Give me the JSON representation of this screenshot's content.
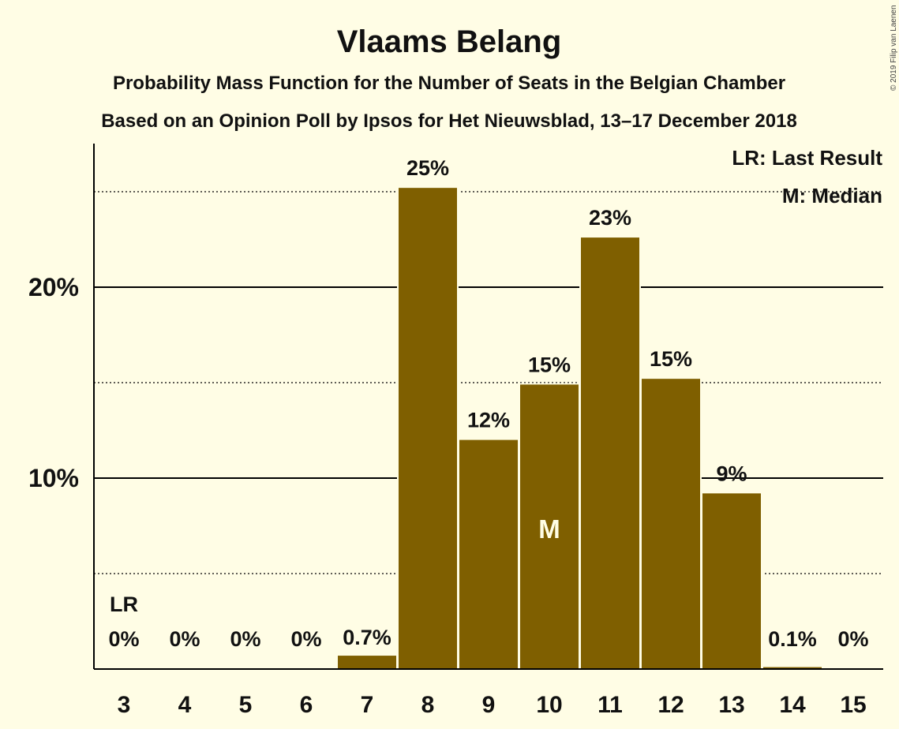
{
  "chart_data": {
    "type": "bar",
    "title": "Vlaams Belang",
    "subtitle": [
      "Probability Mass Function for the Number of Seats in the Belgian Chamber",
      "Based on an Opinion Poll by Ipsos for Het Nieuwsblad, 13–17 December 2018"
    ],
    "categories": [
      "3",
      "4",
      "5",
      "6",
      "7",
      "8",
      "9",
      "10",
      "11",
      "12",
      "13",
      "14",
      "15"
    ],
    "values": [
      0,
      0,
      0,
      0,
      0.7,
      25.2,
      12.0,
      14.9,
      22.6,
      15.2,
      9.2,
      0.1,
      0
    ],
    "data_labels": [
      "0%",
      "0%",
      "0%",
      "0%",
      "0.7%",
      "25%",
      "12%",
      "15%",
      "23%",
      "15%",
      "9%",
      "0.1%",
      "0%"
    ],
    "y_ticks": [
      {
        "value": 10,
        "label": "10%"
      },
      {
        "value": 20,
        "label": "20%"
      }
    ],
    "y_dotted_lines": [
      5,
      15,
      25
    ],
    "ylim": [
      0,
      27.5
    ],
    "bar_color": "#7F5F00",
    "last_result": {
      "category": "3",
      "label": "LR"
    },
    "median": {
      "category": "10",
      "label": "M"
    },
    "legend": [
      "LR: Last Result",
      "M: Median"
    ],
    "legend_position": "top-right",
    "copyright": "© 2019 Filip van Laenen"
  }
}
